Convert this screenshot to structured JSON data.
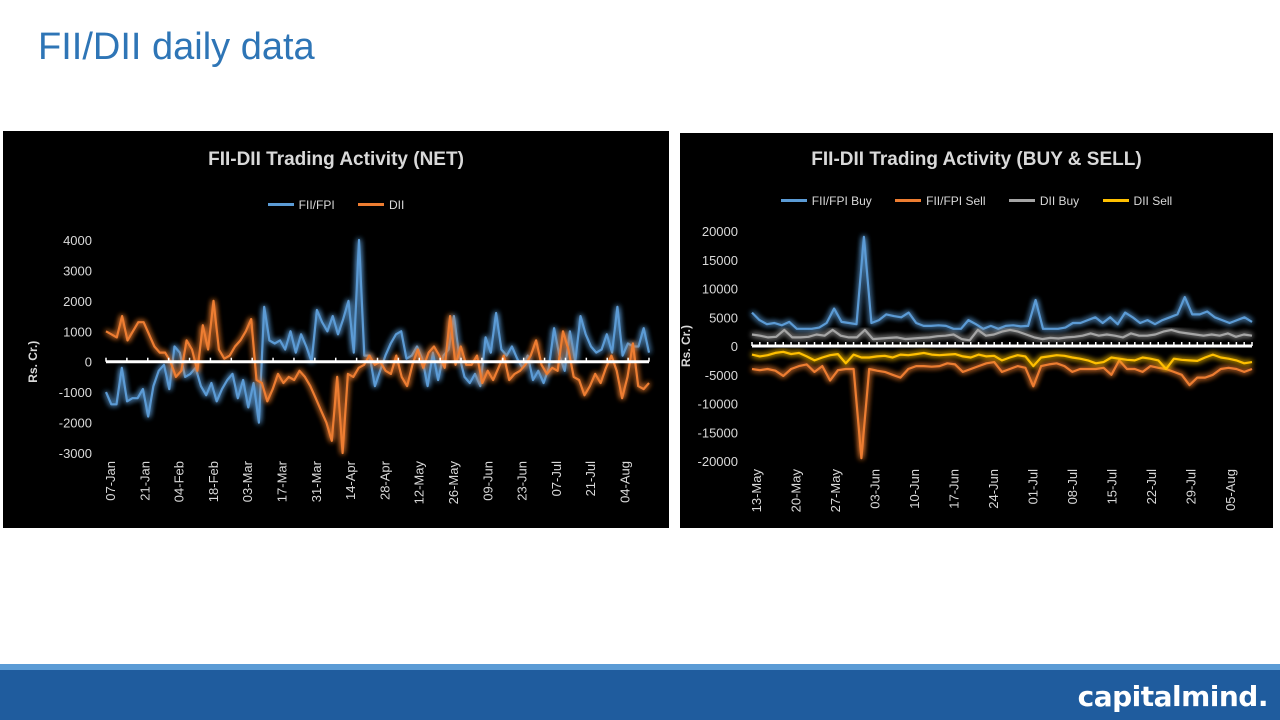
{
  "slide": {
    "title": "FII/DII daily data"
  },
  "footer": {
    "brand": "capitalmind."
  },
  "chart_data": [
    {
      "type": "line",
      "title": "FII-DII  Trading Activity (NET)",
      "ylabel": "Rs. Cr.)",
      "xlabel": "",
      "ylim": [
        -3000,
        4000
      ],
      "yticks": [
        4000,
        3000,
        2000,
        1000,
        0,
        -1000,
        -2000,
        -3000
      ],
      "xtick_labels": [
        "07-Jan",
        "21-Jan",
        "04-Feb",
        "18-Feb",
        "03-Mar",
        "17-Mar",
        "31-Mar",
        "14-Apr",
        "28-Apr",
        "12-May",
        "26-May",
        "09-Jun",
        "23-Jun",
        "07-Jul",
        "21-Jul",
        "04-Aug"
      ],
      "legend_position": "top",
      "grid": false,
      "series": [
        {
          "name": "FII/FPI",
          "color": "#5b9bd5",
          "values": [
            -1000,
            -1400,
            -1400,
            -200,
            -1300,
            -1200,
            -1200,
            -900,
            -1800,
            -800,
            -300,
            -100,
            -900,
            500,
            300,
            -500,
            -400,
            -200,
            -800,
            -1100,
            -700,
            -1300,
            -900,
            -600,
            -400,
            -1200,
            -600,
            -1500,
            -700,
            -2000,
            1800,
            700,
            600,
            700,
            400,
            1000,
            300,
            900,
            500,
            0,
            1700,
            1300,
            1000,
            1500,
            900,
            1400,
            2000,
            300,
            4000,
            200,
            200,
            -800,
            -300,
            200,
            600,
            900,
            1000,
            100,
            200,
            500,
            100,
            -800,
            300,
            -600,
            200,
            400,
            1500,
            200,
            -500,
            -700,
            -400,
            -800,
            800,
            300,
            1600,
            400,
            200,
            500,
            100,
            -200,
            200,
            -600,
            -300,
            -700,
            -200,
            1100,
            200,
            -300,
            1000,
            0,
            1500,
            900,
            500,
            300,
            400,
            900,
            300,
            1800,
            200,
            600,
            500,
            500,
            1100,
            300
          ]
        },
        {
          "name": "DII",
          "color": "#ed7d31",
          "values": [
            1000,
            900,
            800,
            1500,
            700,
            1000,
            1300,
            1300,
            900,
            500,
            300,
            300,
            0,
            -500,
            -300,
            700,
            400,
            -300,
            1200,
            400,
            2000,
            400,
            100,
            200,
            500,
            700,
            1000,
            1400,
            -600,
            -700,
            -1300,
            -900,
            -400,
            -700,
            -500,
            -600,
            -300,
            -500,
            -800,
            -1200,
            -1600,
            -2000,
            -2600,
            -500,
            -3000,
            -400,
            -500,
            -200,
            -100,
            200,
            -100,
            0,
            -300,
            -400,
            200,
            -500,
            -800,
            -100,
            400,
            -200,
            300,
            500,
            200,
            -200,
            1500,
            -100,
            500,
            -100,
            -100,
            200,
            -700,
            -300,
            -600,
            -200,
            200,
            -600,
            -400,
            -300,
            -100,
            200,
            700,
            -100,
            -400,
            -200,
            -300,
            1000,
            400,
            -500,
            -600,
            -1100,
            -800,
            -400,
            -700,
            -200,
            200,
            -300,
            -1200,
            -500,
            600,
            -800,
            -900,
            -700
          ]
        }
      ]
    },
    {
      "type": "line",
      "title": "FII-DII  Trading Activity (BUY & SELL)",
      "ylabel": "Rs. Cr.)",
      "xlabel": "",
      "ylim": [
        -20000,
        20000
      ],
      "yticks": [
        20000,
        15000,
        10000,
        5000,
        0,
        -5000,
        -10000,
        -15000,
        -20000
      ],
      "xtick_labels": [
        "13-May",
        "20-May",
        "27-May",
        "03-Jun",
        "10-Jun",
        "17-Jun",
        "24-Jun",
        "01-Jul",
        "08-Jul",
        "15-Jul",
        "22-Jul",
        "29-Jul",
        "05-Aug"
      ],
      "legend_position": "top",
      "grid": false,
      "series": [
        {
          "name": "FII/FPI Buy",
          "color": "#5b9bd5",
          "values": [
            5800,
            4500,
            3800,
            4000,
            3600,
            4200,
            3000,
            3000,
            3000,
            3200,
            4000,
            6500,
            4200,
            4000,
            3800,
            19000,
            4000,
            4500,
            5500,
            5200,
            5000,
            5800,
            4000,
            3500,
            3500,
            3600,
            3500,
            3000,
            3000,
            4500,
            3800,
            3000,
            3500,
            3000,
            3500,
            3600,
            3400,
            3500,
            8000,
            3000,
            3000,
            3000,
            3200,
            4000,
            4000,
            4500,
            5000,
            4000,
            5000,
            3800,
            5800,
            5000,
            4000,
            4500,
            3800,
            4500,
            5000,
            5500,
            8500,
            5500,
            5500,
            6000,
            5000,
            4500,
            4000,
            4500,
            5000,
            4200
          ]
        },
        {
          "name": "FII/FPI Sell",
          "color": "#ed7d31",
          "values": [
            -4000,
            -4200,
            -4000,
            -4300,
            -5200,
            -4000,
            -3500,
            -3200,
            -4500,
            -3500,
            -6000,
            -4200,
            -4000,
            -4000,
            -19500,
            -4000,
            -4300,
            -4500,
            -5000,
            -5500,
            -4000,
            -3500,
            -3500,
            -3600,
            -3500,
            -3000,
            -3200,
            -4500,
            -4000,
            -3500,
            -3000,
            -2800,
            -4500,
            -4000,
            -3500,
            -3800,
            -7000,
            -3500,
            -3200,
            -3000,
            -3500,
            -4500,
            -4000,
            -4000,
            -4000,
            -3800,
            -5000,
            -2500,
            -4000,
            -4000,
            -4500,
            -3500,
            -3800,
            -4000,
            -4500,
            -5000,
            -6800,
            -5500,
            -5500,
            -5000,
            -4000,
            -3800,
            -4000,
            -4500,
            -4000
          ]
        },
        {
          "name": "DII Buy",
          "color": "#a5a5a5",
          "values": [
            2000,
            1800,
            1500,
            1600,
            2800,
            1500,
            1500,
            1600,
            2000,
            1800,
            2800,
            1800,
            1500,
            1500,
            2800,
            1200,
            1300,
            1400,
            1500,
            1200,
            1300,
            1400,
            1500,
            1700,
            1800,
            2000,
            1200,
            1000,
            2800,
            1800,
            2000,
            2500,
            2800,
            2500,
            2000,
            1500,
            1200,
            1400,
            1300,
            1500,
            1600,
            1800,
            2200,
            1800,
            2000,
            1800,
            1500,
            2200,
            1800,
            1800,
            2000,
            2500,
            2800,
            2400,
            2200,
            2000,
            1800,
            2000,
            1800,
            2200,
            1600,
            2000,
            1800
          ]
        },
        {
          "name": "DII Sell",
          "color": "#ffc000",
          "values": [
            -1500,
            -1800,
            -1600,
            -1200,
            -1000,
            -1400,
            -1200,
            -1800,
            -2500,
            -2000,
            -1600,
            -1400,
            -3000,
            -1500,
            -2000,
            -2000,
            -1800,
            -1700,
            -2000,
            -1500,
            -1600,
            -1400,
            -1200,
            -1500,
            -1600,
            -1500,
            -1400,
            -1800,
            -2000,
            -1500,
            -1800,
            -1700,
            -2500,
            -2000,
            -1600,
            -1800,
            -3500,
            -2000,
            -1800,
            -1600,
            -1700,
            -2000,
            -2200,
            -2500,
            -3000,
            -2800,
            -2000,
            -2200,
            -2400,
            -2500,
            -2000,
            -2200,
            -2500,
            -4000,
            -2200,
            -2400,
            -2500,
            -2600,
            -2000,
            -1500,
            -2000,
            -2200,
            -2500,
            -3000,
            -2800
          ]
        }
      ]
    }
  ]
}
